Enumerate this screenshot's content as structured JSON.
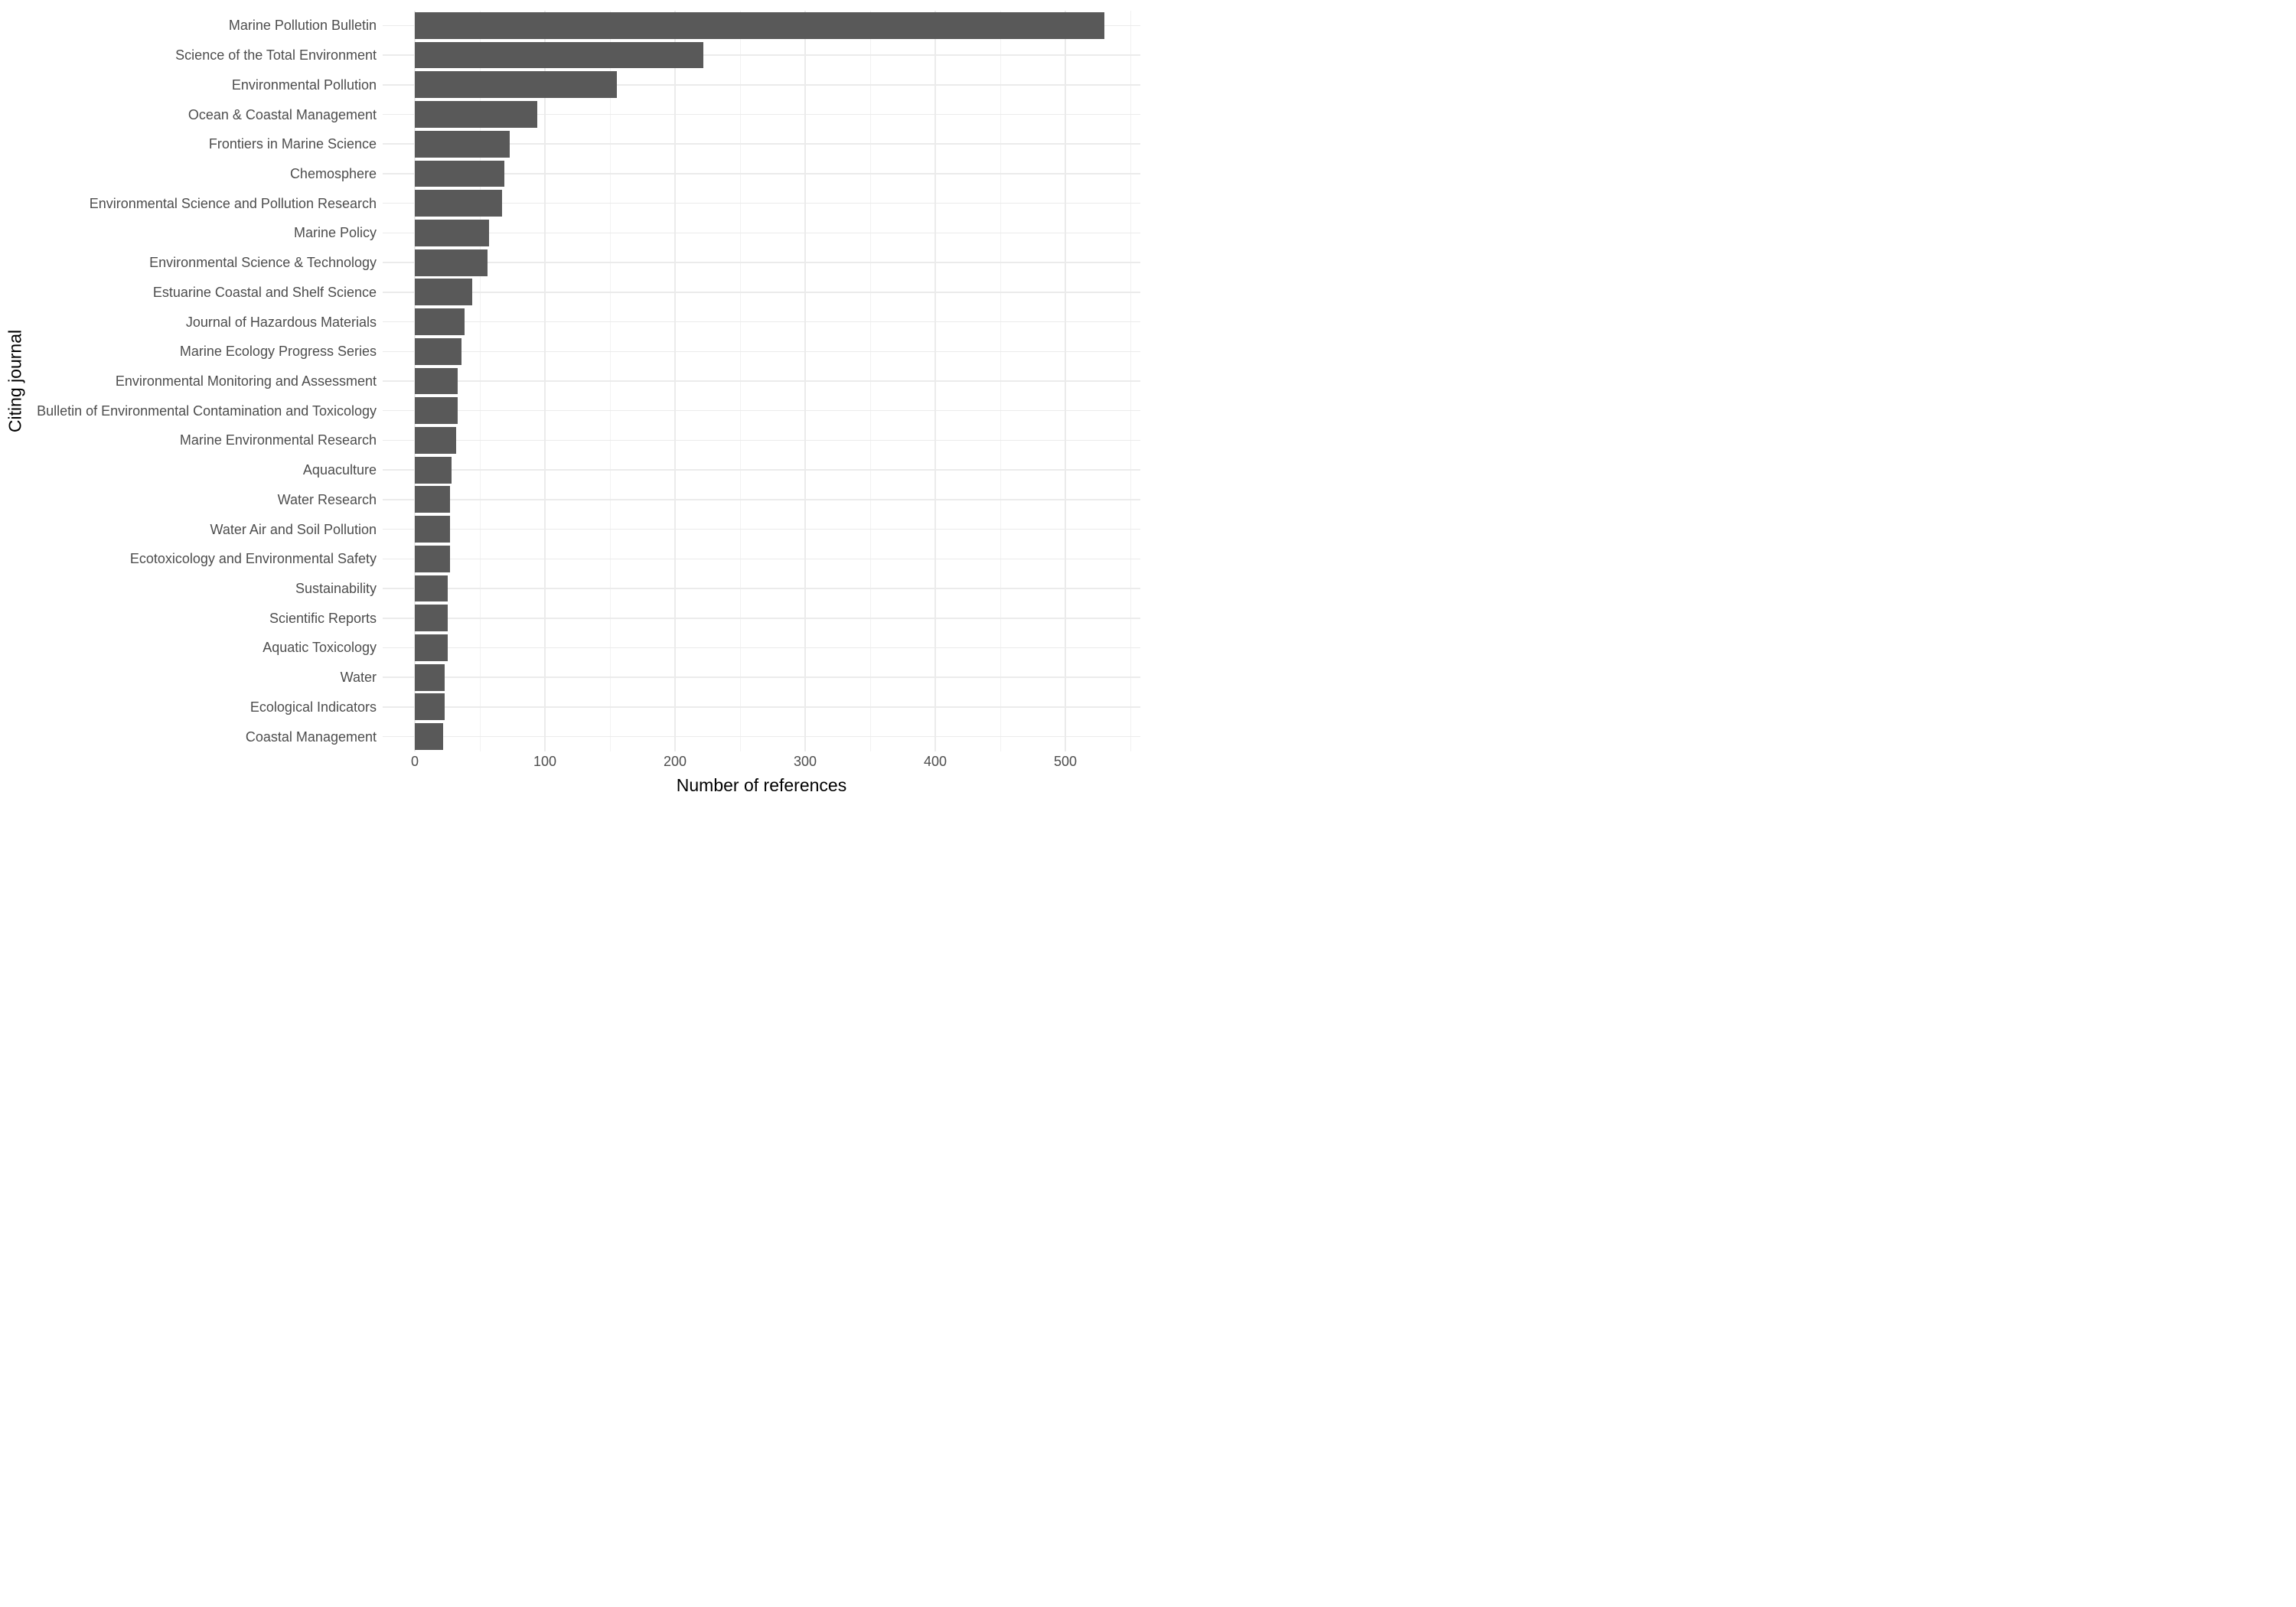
{
  "chart_data": {
    "type": "bar",
    "orientation": "horizontal",
    "title": "",
    "xlabel": "Number of references",
    "ylabel": "Citing journal",
    "categories": [
      "Marine Pollution Bulletin",
      "Science of the Total Environment",
      "Environmental Pollution",
      "Ocean & Coastal Management",
      "Frontiers in Marine Science",
      "Chemosphere",
      "Environmental Science and Pollution Research",
      "Marine Policy",
      "Environmental Science & Technology",
      "Estuarine Coastal and Shelf Science",
      "Journal of Hazardous Materials",
      "Marine Ecology Progress Series",
      "Environmental Monitoring and Assessment",
      "Bulletin of Environmental Contamination and Toxicology",
      "Marine Environmental Research",
      "Aquaculture",
      "Water Research",
      "Water Air and Soil Pollution",
      "Ecotoxicology and Environmental Safety",
      "Sustainability",
      "Scientific Reports",
      "Aquatic Toxicology",
      "Water",
      "Ecological Indicators",
      "Coastal Management"
    ],
    "values": [
      530,
      222,
      155,
      94,
      73,
      69,
      67,
      57,
      56,
      44,
      38,
      36,
      33,
      33,
      32,
      28,
      27,
      27,
      27,
      25,
      25,
      25,
      23,
      23,
      22
    ],
    "x_ticks": [
      0,
      100,
      200,
      300,
      400,
      500
    ],
    "x_minor_ticks": [
      50,
      150,
      250,
      350,
      450,
      550
    ],
    "xlim": [
      -25,
      557
    ],
    "grid": "on",
    "legend_position": "none",
    "colors": {
      "bar_fill": "#595959",
      "grid_major": "#EBEBEB",
      "grid_minor": "#F2F2F2",
      "tick_label": "#4D4D4D",
      "axis_title": "#000000",
      "background": "#FFFFFF"
    }
  }
}
